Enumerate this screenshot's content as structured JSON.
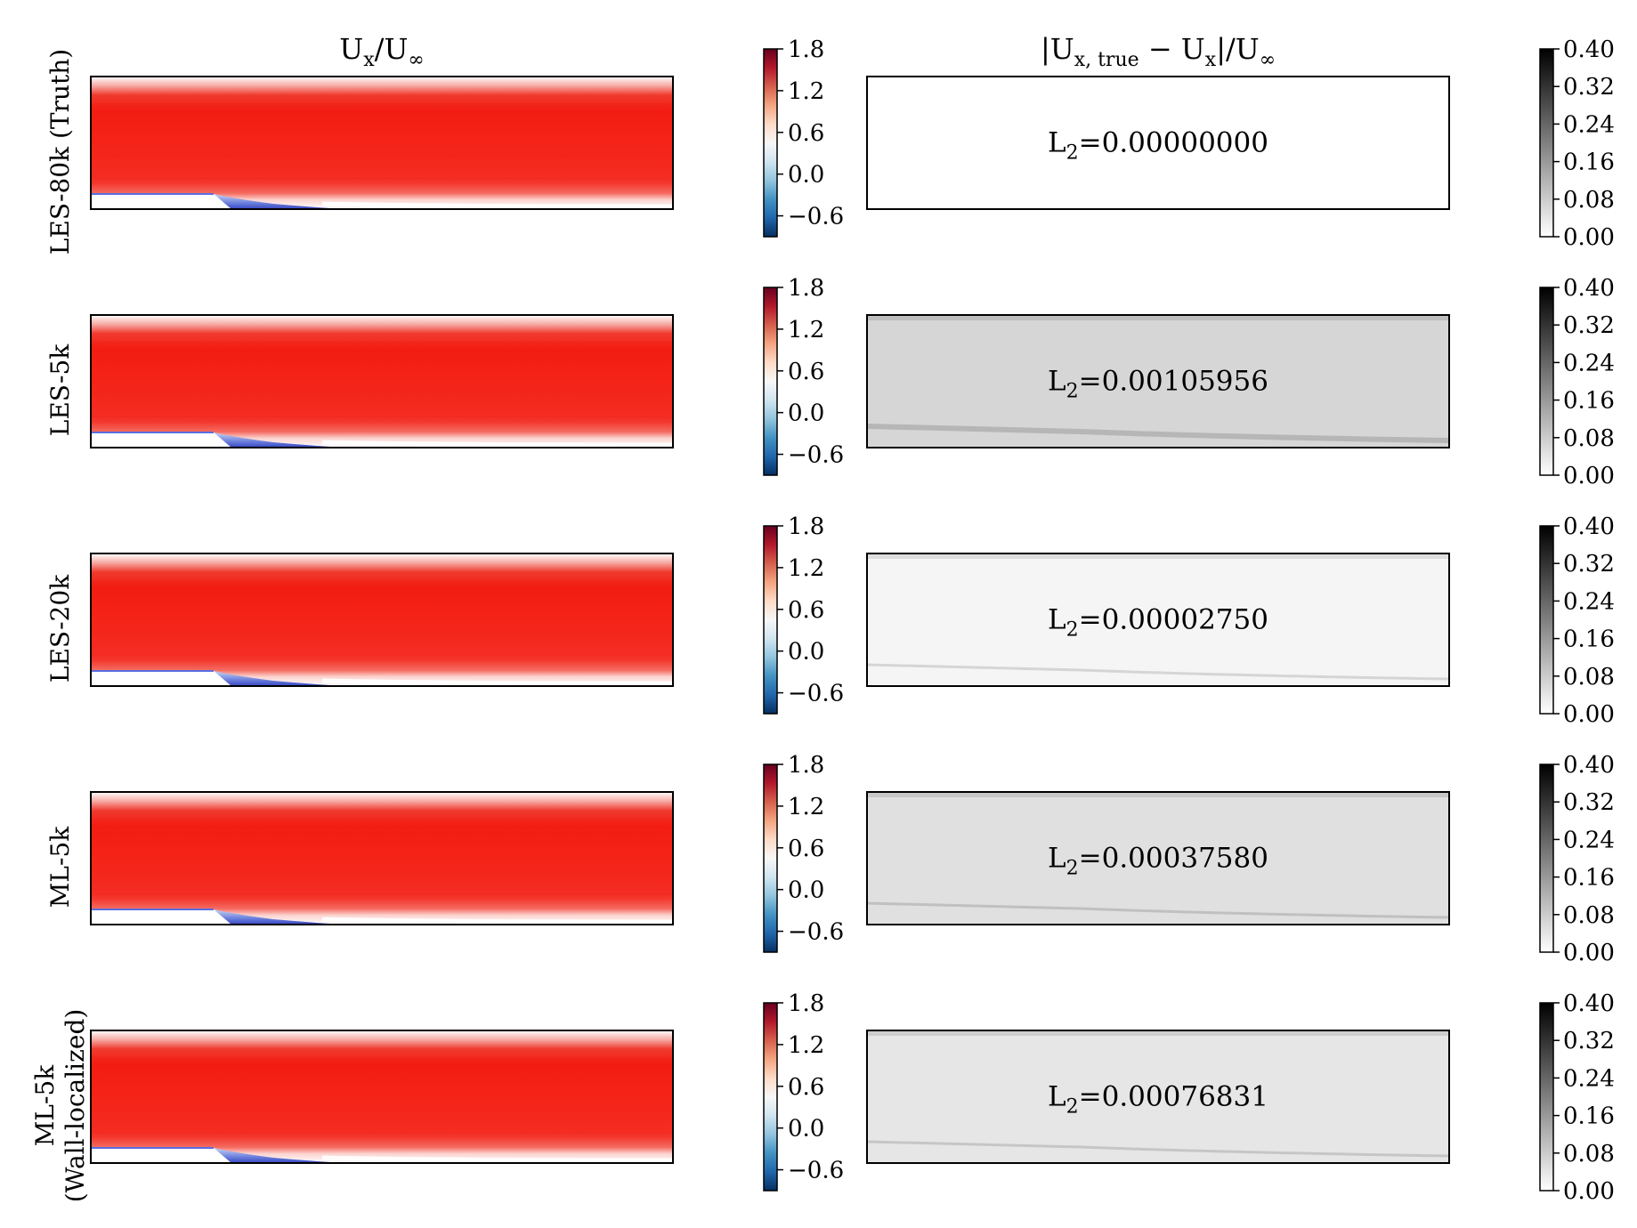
{
  "figure": {
    "col_titles": {
      "left": {
        "base": "U",
        "sub": "x",
        "rest": "/U",
        "rest_sub": "∞"
      },
      "right": {
        "bar": "|",
        "base": "U",
        "sub": "x, true",
        "minus": " − U",
        "sub2": "x",
        "rest": "|/U",
        "rest_sub": "∞"
      }
    },
    "row_labels": [
      [
        "LES-80k (Truth)"
      ],
      [
        "LES-5k"
      ],
      [
        "LES-20k"
      ],
      [
        "ML-5k"
      ],
      [
        "ML-5k",
        "(Wall-localized)"
      ]
    ],
    "l2_prefix": "L",
    "l2_sub": "2",
    "l2_eq": "=",
    "velocity_colorbar": {
      "colors": [
        "#67001f",
        "#b2182b",
        "#d6604d",
        "#f4a582",
        "#fddbc7",
        "#f7f7f7",
        "#d1e5f0",
        "#92c5de",
        "#4393c3",
        "#2166ac",
        "#053061"
      ],
      "ticks": [
        "1.8",
        "1.2",
        "0.6",
        "0.0",
        "−0.6"
      ]
    },
    "error_colorbar": {
      "colors": [
        "#000000",
        "#ffffff"
      ],
      "ticks": [
        "0.40",
        "0.32",
        "0.24",
        "0.16",
        "0.08",
        "0.00"
      ]
    }
  },
  "chart_data": [
    {
      "type": "heatmap",
      "title": "Ux/U∞",
      "colorbar_range": [
        -0.9,
        1.8
      ],
      "colorbar_ticks": [
        1.8,
        1.2,
        0.6,
        0.0,
        -0.6
      ],
      "colormap": "seismic",
      "panels": [
        {
          "row": "LES-80k (Truth)",
          "bulk_value": 1.2,
          "separation": true
        },
        {
          "row": "LES-5k",
          "bulk_value": 1.2,
          "separation": true
        },
        {
          "row": "LES-20k",
          "bulk_value": 1.2,
          "separation": true
        },
        {
          "row": "ML-5k",
          "bulk_value": 1.15,
          "separation": true
        },
        {
          "row": "ML-5k (Wall-localized)",
          "bulk_value": 1.2,
          "separation": true
        }
      ]
    },
    {
      "type": "heatmap",
      "title": "|Ux, true − Ux|/U∞",
      "colorbar_range": [
        0.0,
        0.4
      ],
      "colorbar_ticks": [
        0.4,
        0.32,
        0.24,
        0.16,
        0.08,
        0.0
      ],
      "colormap": "gray_r",
      "panels": [
        {
          "row": "LES-80k (Truth)",
          "L2": "0.00000000",
          "mean_error": 0.0
        },
        {
          "row": "LES-5k",
          "L2": "0.00105956",
          "mean_error": 0.04
        },
        {
          "row": "LES-20k",
          "L2": "0.00002750",
          "mean_error": 0.01
        },
        {
          "row": "ML-5k",
          "L2": "0.00037580",
          "mean_error": 0.03
        },
        {
          "row": "ML-5k (Wall-localized)",
          "L2": "0.00076831",
          "mean_error": 0.025
        }
      ]
    }
  ]
}
